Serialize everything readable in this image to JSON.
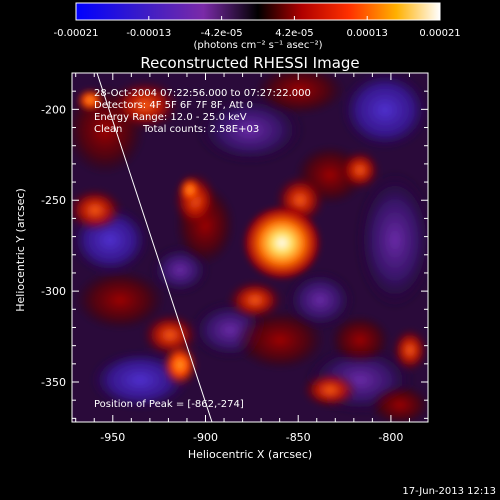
{
  "colorbar": {
    "tick_labels": [
      "-0.00021",
      "-0.00013",
      "-4.2e-05",
      "4.2e-05",
      "0.00013",
      "0.00021"
    ],
    "units_label": "(photons cm⁻² s⁻¹ asec⁻²)",
    "range": [
      -0.00021,
      0.00021
    ],
    "colormap": "blue-purple-red-yellow-white"
  },
  "plot": {
    "title": "Reconstructed RHESSI Image",
    "xlabel": "Heliocentric X (arcsec)",
    "ylabel": "Heliocentric Y (arcsec)",
    "x_ticks": [
      "-950",
      "-900",
      "-850",
      "-800"
    ],
    "y_ticks": [
      "-200",
      "-250",
      "-300",
      "-350"
    ],
    "xlim": [
      -972,
      -780
    ],
    "ylim": [
      -372,
      -180
    ]
  },
  "annotation": {
    "time_range": "28-Oct-2004 07:22:56.000 to 07:27:22.000",
    "detectors": "Detectors: 4F 5F 6F 7F 8F, Att 0",
    "energy_range": "Energy Range: 12.0 - 25.0 keV",
    "method": "Clean",
    "counts": "Total counts: 2.58E+03",
    "peak": "Position of Peak = [-862,-274]"
  },
  "peak_position": {
    "x": -862,
    "y": -274
  },
  "footer": {
    "timestamp": "17-Jun-2013 12:13"
  }
}
